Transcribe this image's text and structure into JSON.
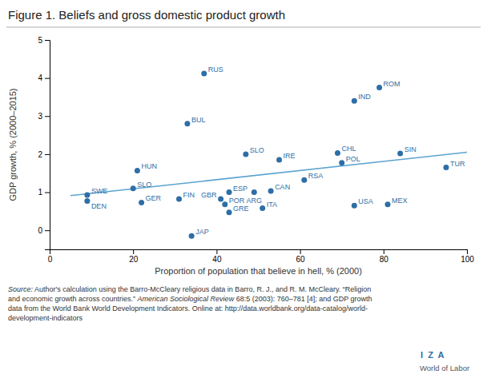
{
  "chart_data": {
    "type": "scatter",
    "title": "Figure 1. Beliefs and gross domestic product growth",
    "xlabel": "Proportion of population that believe in hell, % (2000)",
    "ylabel": "GDP growth, % (2000–2015)",
    "xlim": [
      0,
      100
    ],
    "ylim": [
      -0.5,
      5
    ],
    "xticks": [
      0,
      20,
      40,
      60,
      80,
      100
    ],
    "yticks": [
      0,
      1,
      2,
      3,
      4,
      5
    ],
    "color": "#2E6EA6",
    "labels": [
      "SWE",
      "DEN",
      "HUN",
      "SLO",
      "GER",
      "FIN",
      "BUL",
      "JAP",
      "ESP",
      "GBR",
      "POR",
      "GRE",
      "SLO",
      "ARG",
      "CAN",
      "ITA",
      "IRE",
      "RSA",
      "RUS",
      "CHL",
      "POL",
      "ROM",
      "IND",
      "USA",
      "MEX",
      "SIN",
      "TUR"
    ],
    "x": [
      9,
      9,
      21,
      20,
      22,
      31,
      33,
      34,
      43,
      41,
      42,
      43,
      47,
      49,
      53,
      51,
      55,
      61,
      37,
      69,
      70,
      79,
      73,
      73,
      81,
      84,
      95
    ],
    "values": [
      0.93,
      0.77,
      1.57,
      1.1,
      0.73,
      0.82,
      2.8,
      -0.15,
      1.0,
      0.82,
      0.68,
      0.47,
      2.0,
      1.0,
      1.03,
      0.58,
      1.85,
      1.32,
      4.12,
      2.03,
      1.77,
      3.75,
      3.4,
      0.65,
      0.68,
      2.02,
      1.65
    ],
    "trendline": {
      "x": [
        5,
        100
      ],
      "values": [
        0.91,
        2.05
      ],
      "color": "#5BA3D0"
    },
    "annotations": [
      "Source:",
      " Author's calculation using the Barro-McCleary religious data in Barro, R. J., and R. M. McCleary. “Religion\nand economic growth across countries.” ",
      "American Sociological Review",
      " 68:5 (2003): 760–781 [4]; and GDP growth\ndata from the World Bank World Development Indicators. Online at: http://data.worldbank.org/data-catalog/world-\ndevelopment-indicators",
      "I  Z  A",
      "World of Labor"
    ]
  }
}
